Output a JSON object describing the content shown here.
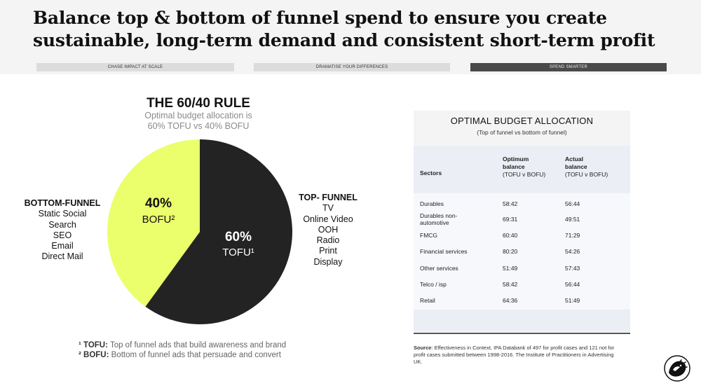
{
  "header": {
    "title": "Balance top & bottom of funnel spend to ensure you create sustainable, long-term demand and consistent short-term profit",
    "tabs": [
      {
        "label": "CHASE IMPACT AT SCALE"
      },
      {
        "label": "DRAMATISE YOUR DIFFERENCES"
      },
      {
        "label": "SPEND SMARTER"
      }
    ]
  },
  "rule": {
    "title": "THE 60/40 RULE",
    "subtitle_line1": "Optimal budget allocation is",
    "subtitle_line2": "60% TOFU vs 40% BOFU"
  },
  "chart_data": {
    "type": "pie",
    "categories": [
      "TOFU",
      "BOFU"
    ],
    "values": [
      60,
      40
    ],
    "colors": [
      "#232323",
      "#eaff6b"
    ],
    "labels": {
      "tofu_pct": "60%",
      "tofu_name": "TOFU¹",
      "bofu_pct": "40%",
      "bofu_name": "BOFU²"
    }
  },
  "bottom_funnel": {
    "heading": "BOTTOM-FUNNEL",
    "items": [
      "Static Social",
      "Search",
      "SEO",
      "Email",
      "Direct Mail"
    ]
  },
  "top_funnel": {
    "heading": "TOP- FUNNEL",
    "items": [
      "TV",
      "Online Video",
      "OOH",
      "Radio",
      "Print",
      "Display"
    ]
  },
  "footnotes": {
    "tofu_key": "¹ TOFU:",
    "tofu_text": " Top of funnel ads that build awareness and brand",
    "bofu_key": "² BOFU:",
    "bofu_text": " Bottom of funnel ads that persuade and convert"
  },
  "table": {
    "title": "OPTIMAL BUDGET ALLOCATION",
    "subtitle": "(Top of funnel vs bottom of funnel)",
    "headers": {
      "sector": "Sectors",
      "optimum_line1": "Optimum",
      "optimum_line2": "balance",
      "optimum_line3": "(TOFU v BOFU)",
      "actual_line1": "Actual",
      "actual_line2": "balance",
      "actual_line3": "(TOFU v BOFU)"
    },
    "rows": [
      {
        "sector": "Durables",
        "optimum": "58:42",
        "actual": "56:44"
      },
      {
        "sector": "Durables non-automotive",
        "optimum": "69:31",
        "actual": "49:51"
      },
      {
        "sector": "FMCG",
        "optimum": "60:40",
        "actual": "71:29"
      },
      {
        "sector": "Financial services",
        "optimum": "80:20",
        "actual": "54:26"
      },
      {
        "sector": "Other services",
        "optimum": "51:49",
        "actual": "57:43"
      },
      {
        "sector": "Telco / isp",
        "optimum": "58:42",
        "actual": "56:44"
      },
      {
        "sector": "Retail",
        "optimum": "64:36",
        "actual": "51:49"
      }
    ]
  },
  "source": {
    "label": "Source",
    "text": ": Effectiveness in Context, IPA Databank of 497 for profit cases and 121 not for profit cases submitted between 1998-2016. The Institute of Practitioners in Advertising UK."
  },
  "logo": {
    "icon": "lion-emblem-icon"
  }
}
